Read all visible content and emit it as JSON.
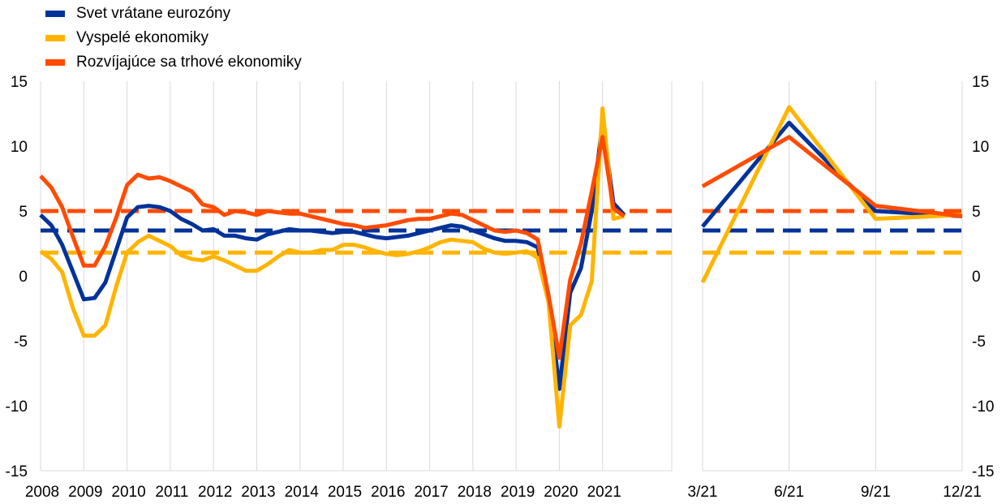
{
  "legend": [
    {
      "label": "Svet vrátane eurozóny",
      "color": "#003299"
    },
    {
      "label": "Vyspelé ekonomiky",
      "color": "#FFB400"
    },
    {
      "label": "Rozvíjajúce sa trhové ekonomiky",
      "color": "#FF4B00"
    }
  ],
  "chart_data": [
    {
      "type": "line",
      "title": "",
      "xlabel": "",
      "ylabel": "",
      "ylim": [
        -15,
        15
      ],
      "y_ticks": [
        -15,
        -10,
        -5,
        0,
        5,
        10,
        15
      ],
      "x_tick_labels": [
        "2008",
        "2009",
        "2010",
        "2011",
        "2012",
        "2013",
        "2014",
        "2015",
        "2016",
        "2017",
        "2018",
        "2019",
        "2020",
        "2021"
      ],
      "grid": "vertical",
      "legend_position": "top-left",
      "x_start": 2008.0,
      "x_step": 0.25,
      "series": [
        {
          "name": "Svet vrátane eurozóny",
          "color": "#003299",
          "values": [
            4.7,
            3.9,
            2.4,
            0.3,
            -1.8,
            -1.7,
            -0.5,
            2.0,
            4.5,
            5.3,
            5.4,
            5.3,
            5.0,
            4.4,
            4.0,
            3.5,
            3.6,
            3.1,
            3.1,
            2.9,
            2.8,
            3.2,
            3.4,
            3.6,
            3.5,
            3.5,
            3.4,
            3.3,
            3.4,
            3.4,
            3.2,
            3.0,
            2.9,
            3.0,
            3.1,
            3.3,
            3.5,
            3.7,
            3.9,
            3.8,
            3.5,
            3.2,
            2.9,
            2.7,
            2.7,
            2.6,
            2.2,
            -1.5,
            -8.7,
            -1.3,
            0.6,
            5.0,
            11.8,
            5.6,
            4.7
          ],
          "reference": 3.5
        },
        {
          "name": "Vyspelé ekonomiky",
          "color": "#FFB400",
          "values": [
            1.9,
            1.3,
            0.3,
            -2.5,
            -4.6,
            -4.6,
            -3.8,
            -0.8,
            1.8,
            2.6,
            3.1,
            2.7,
            2.3,
            1.6,
            1.3,
            1.2,
            1.5,
            1.2,
            0.8,
            0.4,
            0.4,
            0.9,
            1.5,
            2.0,
            1.8,
            1.8,
            2.0,
            2.0,
            2.4,
            2.4,
            2.2,
            1.9,
            1.7,
            1.6,
            1.7,
            1.9,
            2.2,
            2.6,
            2.8,
            2.7,
            2.6,
            2.1,
            1.8,
            1.7,
            1.8,
            1.9,
            1.4,
            -2.0,
            -11.6,
            -3.8,
            -3.0,
            -0.4,
            12.9,
            4.4,
            4.6
          ],
          "reference": 1.8
        },
        {
          "name": "Rozvíjajúce sa trhové ekonomiky",
          "color": "#FF4B00",
          "values": [
            7.7,
            6.8,
            5.3,
            3.0,
            0.8,
            0.8,
            2.3,
            4.5,
            7.0,
            7.8,
            7.5,
            7.6,
            7.3,
            6.9,
            6.5,
            5.5,
            5.3,
            4.7,
            5.0,
            4.9,
            4.7,
            5.0,
            4.9,
            4.8,
            4.8,
            4.6,
            4.4,
            4.2,
            4.0,
            3.9,
            3.7,
            3.8,
            3.9,
            4.1,
            4.3,
            4.4,
            4.4,
            4.6,
            4.8,
            4.7,
            4.3,
            3.9,
            3.5,
            3.4,
            3.5,
            3.3,
            2.8,
            -1.5,
            -6.3,
            -0.3,
            2.5,
            6.5,
            10.7,
            5.2,
            4.6
          ],
          "reference": 5.0
        }
      ]
    },
    {
      "type": "line",
      "title": "",
      "xlabel": "",
      "ylabel": "",
      "ylim": [
        -15,
        15
      ],
      "y_ticks": [
        -15,
        -10,
        -5,
        0,
        5,
        10,
        15
      ],
      "categories": [
        "3/21",
        "6/21",
        "9/21",
        "12/21"
      ],
      "grid": "vertical",
      "series": [
        {
          "name": "Svet vrátane eurozóny",
          "color": "#003299",
          "values": [
            3.8,
            11.8,
            5.0,
            4.6
          ],
          "reference": 3.5
        },
        {
          "name": "Vyspelé ekonomiky",
          "color": "#FFB400",
          "values": [
            -0.5,
            13.0,
            4.4,
            4.7
          ],
          "reference": 1.8
        },
        {
          "name": "Rozvíjajúce sa trhové ekonomiky",
          "color": "#FF4B00",
          "values": [
            6.9,
            10.7,
            5.4,
            4.6
          ],
          "reference": 5.0
        }
      ]
    }
  ]
}
